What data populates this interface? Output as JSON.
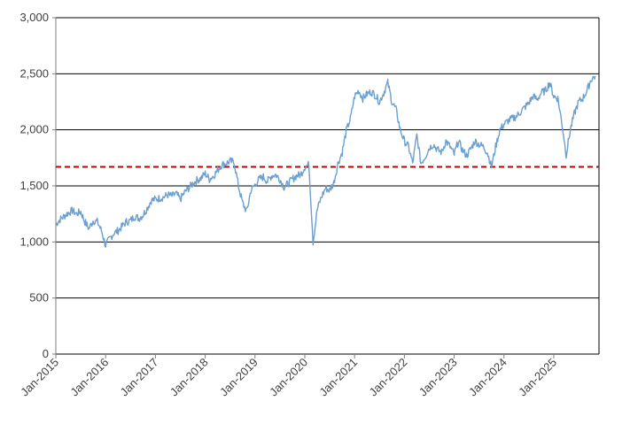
{
  "chart_data": {
    "type": "line",
    "title": "",
    "xlabel": "",
    "ylabel": "",
    "ylim": [
      0,
      3000
    ],
    "xlim": [
      "2015-01",
      "2025-11"
    ],
    "y_ticks": [
      "0",
      "500",
      "1,000",
      "1,500",
      "2,000",
      "2,500",
      "3,000"
    ],
    "y_tick_values": [
      0,
      500,
      1000,
      1500,
      2000,
      2500,
      3000
    ],
    "x_ticks": [
      "Jan-2015",
      "Jan-2016",
      "Jan-2017",
      "Jan-2018",
      "Jan-2019",
      "Jan-2020",
      "Jan-2021",
      "Jan-2022",
      "Jan-2023",
      "Jan-2024",
      "Jan-2025"
    ],
    "grid": "horizontal",
    "legend": "none",
    "colors": {
      "series": "#6a9fcf",
      "reference": "#c00000",
      "grid": "#000000",
      "axis": "#7f7f7f"
    },
    "reference_line": {
      "value": 1670,
      "style": "dashed"
    },
    "series": [
      {
        "x": [
          "2015-01",
          "2015-02",
          "2015-03",
          "2015-04",
          "2015-05",
          "2015-06",
          "2015-07",
          "2015-08",
          "2015-09",
          "2015-10",
          "2015-11",
          "2015-12",
          "2016-01",
          "2016-02",
          "2016-03",
          "2016-04",
          "2016-05",
          "2016-06",
          "2016-07",
          "2016-08",
          "2016-09",
          "2016-10",
          "2016-11",
          "2016-12",
          "2017-01",
          "2017-02",
          "2017-03",
          "2017-04",
          "2017-05",
          "2017-06",
          "2017-07",
          "2017-08",
          "2017-09",
          "2017-10",
          "2017-11",
          "2017-12",
          "2018-01",
          "2018-02",
          "2018-03",
          "2018-04",
          "2018-05",
          "2018-06",
          "2018-07",
          "2018-08",
          "2018-09",
          "2018-10",
          "2018-11",
          "2018-12",
          "2019-01",
          "2019-02",
          "2019-03",
          "2019-04",
          "2019-05",
          "2019-06",
          "2019-07",
          "2019-08",
          "2019-09",
          "2019-10",
          "2019-11",
          "2019-12",
          "2020-01",
          "2020-02",
          "2020-03",
          "2020-04",
          "2020-05",
          "2020-06",
          "2020-07",
          "2020-08",
          "2020-09",
          "2020-10",
          "2020-11",
          "2020-12",
          "2021-01",
          "2021-02",
          "2021-03",
          "2021-04",
          "2021-05",
          "2021-06",
          "2021-07",
          "2021-08",
          "2021-09",
          "2021-10",
          "2021-11",
          "2021-12",
          "2022-01",
          "2022-02",
          "2022-03",
          "2022-04",
          "2022-05",
          "2022-06",
          "2022-07",
          "2022-08",
          "2022-09",
          "2022-10",
          "2022-11",
          "2022-12",
          "2023-01",
          "2023-02",
          "2023-03",
          "2023-04",
          "2023-05",
          "2023-06",
          "2023-07",
          "2023-08",
          "2023-09",
          "2023-10",
          "2023-11",
          "2023-12",
          "2024-01",
          "2024-02",
          "2024-03",
          "2024-04",
          "2024-05",
          "2024-06",
          "2024-07",
          "2024-08",
          "2024-09",
          "2024-10",
          "2024-11",
          "2024-12",
          "2025-01",
          "2025-02",
          "2025-03",
          "2025-04",
          "2025-05",
          "2025-06",
          "2025-07",
          "2025-08",
          "2025-09",
          "2025-10",
          "2025-11"
        ],
        "values": [
          1160,
          1200,
          1230,
          1260,
          1280,
          1250,
          1270,
          1180,
          1120,
          1190,
          1180,
          1100,
          970,
          1030,
          1080,
          1100,
          1140,
          1180,
          1190,
          1230,
          1210,
          1240,
          1300,
          1370,
          1380,
          1390,
          1400,
          1420,
          1410,
          1430,
          1380,
          1440,
          1480,
          1520,
          1550,
          1570,
          1610,
          1560,
          1590,
          1640,
          1690,
          1700,
          1720,
          1710,
          1500,
          1350,
          1270,
          1460,
          1510,
          1560,
          1580,
          1540,
          1590,
          1600,
          1560,
          1490,
          1520,
          1560,
          1590,
          1600,
          1670,
          1690,
          1000,
          1290,
          1400,
          1480,
          1460,
          1530,
          1700,
          1800,
          1990,
          2100,
          2300,
          2350,
          2280,
          2320,
          2340,
          2310,
          2250,
          2330,
          2420,
          2250,
          2180,
          2000,
          1900,
          1850,
          1700,
          1950,
          1700,
          1760,
          1840,
          1870,
          1820,
          1800,
          1900,
          1850,
          1780,
          1900,
          1820,
          1770,
          1830,
          1900,
          1870,
          1850,
          1800,
          1670,
          1850,
          2000,
          2050,
          2080,
          2100,
          2120,
          2160,
          2200,
          2240,
          2300,
          2270,
          2330,
          2350,
          2420,
          2300,
          2280,
          2050,
          1780,
          2000,
          2150,
          2250,
          2280,
          2350,
          2450,
          2480
        ]
      }
    ]
  }
}
